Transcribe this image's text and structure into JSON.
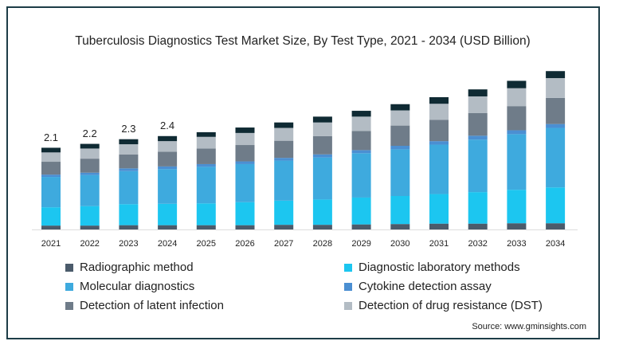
{
  "chart_data": {
    "type": "stacked_bar",
    "title": "Tuberculosis Diagnostics Test Market Size, By Test Type, 2021 - 2034 (USD Billion)",
    "source": "Source: www.gminsights.com",
    "categories": [
      "2021",
      "2022",
      "2023",
      "2024",
      "2025",
      "2026",
      "2027",
      "2028",
      "2029",
      "2030",
      "2031",
      "2032",
      "2033",
      "2034"
    ],
    "ylim": [
      0,
      4.3
    ],
    "totals": [
      2.1,
      2.2,
      2.3,
      2.4,
      null,
      null,
      null,
      null,
      null,
      null,
      null,
      null,
      null,
      null
    ],
    "series": [
      {
        "name": "Radiographic method",
        "color": "#4b5b6b",
        "values": [
          0.1,
          0.1,
          0.11,
          0.11,
          0.11,
          0.11,
          0.12,
          0.12,
          0.13,
          0.14,
          0.15,
          0.15,
          0.16,
          0.16
        ]
      },
      {
        "name": "Diagnostic laboratory methods",
        "color": "#1cc6f0",
        "values": [
          0.47,
          0.5,
          0.54,
          0.55,
          0.56,
          0.59,
          0.62,
          0.65,
          0.69,
          0.72,
          0.76,
          0.81,
          0.86,
          0.92
        ]
      },
      {
        "name": "Molecular diagnostics",
        "color": "#3eaade",
        "values": [
          0.78,
          0.8,
          0.85,
          0.89,
          0.94,
          0.98,
          1.03,
          1.08,
          1.14,
          1.2,
          1.27,
          1.35,
          1.43,
          1.53
        ]
      },
      {
        "name": "Cytokine detection assay",
        "color": "#4b8fd2",
        "values": [
          0.06,
          0.06,
          0.07,
          0.07,
          0.07,
          0.07,
          0.07,
          0.08,
          0.08,
          0.09,
          0.09,
          0.1,
          0.1,
          0.1
        ]
      },
      {
        "name": "Detection of latent infection",
        "color": "#6f7c89",
        "values": [
          0.33,
          0.36,
          0.36,
          0.38,
          0.4,
          0.42,
          0.44,
          0.47,
          0.49,
          0.52,
          0.55,
          0.58,
          0.62,
          0.67
        ]
      },
      {
        "name": "Detection of drug resistance (DST)",
        "color": "#b3bcc4",
        "values": [
          0.24,
          0.26,
          0.26,
          0.27,
          0.3,
          0.31,
          0.33,
          0.35,
          0.37,
          0.39,
          0.41,
          0.43,
          0.46,
          0.51
        ]
      },
      {
        "name": null,
        "color": "#0f2a33",
        "values": [
          0.12,
          0.12,
          0.13,
          0.13,
          0.12,
          0.14,
          0.14,
          0.15,
          0.15,
          0.16,
          0.17,
          0.18,
          0.19,
          0.18
        ]
      }
    ]
  }
}
